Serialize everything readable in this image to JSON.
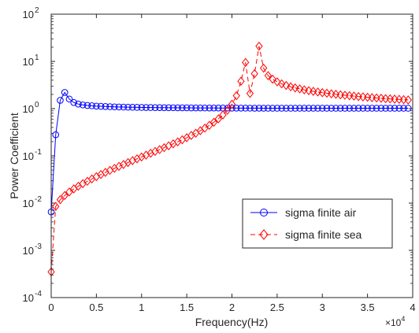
{
  "chart_data": {
    "type": "line",
    "xlabel": "Frequency(Hz)",
    "ylabel": "Power Coefficient",
    "x_multiplier_label": {
      "base": "×10",
      "exponent": "4"
    },
    "xlim": [
      0,
      40000
    ],
    "ylim": [
      0.0001,
      100
    ],
    "yscale": "log",
    "grid": false,
    "legend_position": "lower-right",
    "x_ticks": [
      {
        "value": 0,
        "label": "0"
      },
      {
        "value": 5000,
        "label": "0.5"
      },
      {
        "value": 10000,
        "label": "1"
      },
      {
        "value": 15000,
        "label": "1.5"
      },
      {
        "value": 20000,
        "label": "2"
      },
      {
        "value": 25000,
        "label": "2.5"
      },
      {
        "value": 30000,
        "label": "3"
      },
      {
        "value": 35000,
        "label": "3.5"
      },
      {
        "value": 40000,
        "label": "4"
      }
    ],
    "y_ticks": [
      {
        "value": 0.0001,
        "base": "10",
        "exponent": "-4"
      },
      {
        "value": 0.001,
        "base": "10",
        "exponent": "-3"
      },
      {
        "value": 0.01,
        "base": "10",
        "exponent": "-2"
      },
      {
        "value": 0.1,
        "base": "10",
        "exponent": "-1"
      },
      {
        "value": 1,
        "base": "10",
        "exponent": "0"
      },
      {
        "value": 10,
        "base": "10",
        "exponent": "1"
      },
      {
        "value": 100,
        "base": "10",
        "exponent": "2"
      }
    ],
    "series": [
      {
        "name": "sigma finite air",
        "color": "#0000ff",
        "line_style": "solid",
        "marker": "circle",
        "x": [
          0,
          500,
          1000,
          1500,
          2000,
          2500,
          3000,
          3500,
          4000,
          4500,
          5000,
          5500,
          6000,
          6500,
          7000,
          7500,
          8000,
          8500,
          9000,
          9500,
          10000,
          10500,
          11000,
          11500,
          12000,
          12500,
          13000,
          13500,
          14000,
          14500,
          15000,
          15500,
          16000,
          16500,
          17000,
          17500,
          18000,
          18500,
          19000,
          19500,
          20000,
          20500,
          21000,
          21500,
          22000,
          22500,
          23000,
          23500,
          24000,
          24500,
          25000,
          25500,
          26000,
          26500,
          27000,
          27500,
          28000,
          28500,
          29000,
          29500,
          30000,
          30500,
          31000,
          31500,
          32000,
          32500,
          33000,
          33500,
          34000,
          34500,
          35000,
          35500,
          36000,
          36500,
          37000,
          37500,
          38000,
          38500,
          39000,
          39500
        ],
        "y": [
          0.0065,
          0.28,
          1.5,
          2.2,
          1.6,
          1.35,
          1.25,
          1.2,
          1.17,
          1.15,
          1.13,
          1.12,
          1.11,
          1.1,
          1.09,
          1.085,
          1.08,
          1.075,
          1.07,
          1.065,
          1.06,
          1.058,
          1.055,
          1.052,
          1.05,
          1.048,
          1.046,
          1.044,
          1.042,
          1.04,
          1.04,
          1.038,
          1.036,
          1.035,
          1.034,
          1.033,
          1.032,
          1.031,
          1.03,
          1.029,
          1.028,
          1.027,
          1.026,
          1.025,
          1.024,
          1.023,
          1.022,
          1.021,
          1.02,
          1.02,
          1.02,
          1.02,
          1.02,
          1.02,
          1.02,
          1.02,
          1.02,
          1.02,
          1.02,
          1.02,
          1.02,
          1.02,
          1.02,
          1.02,
          1.02,
          1.02,
          1.02,
          1.02,
          1.02,
          1.02,
          1.02,
          1.02,
          1.02,
          1.02,
          1.02,
          1.02,
          1.02,
          1.02,
          1.02,
          1.02
        ]
      },
      {
        "name": "sigma finite sea",
        "color": "#ff0000",
        "line_style": "dashed",
        "marker": "diamond",
        "x": [
          0,
          500,
          1000,
          1500,
          2000,
          2500,
          3000,
          3500,
          4000,
          4500,
          5000,
          5500,
          6000,
          6500,
          7000,
          7500,
          8000,
          8500,
          9000,
          9500,
          10000,
          10500,
          11000,
          11500,
          12000,
          12500,
          13000,
          13500,
          14000,
          14500,
          15000,
          15500,
          16000,
          16500,
          17000,
          17500,
          18000,
          18500,
          19000,
          19500,
          20000,
          20500,
          21000,
          21500,
          22000,
          22500,
          23000,
          23500,
          24000,
          24500,
          25000,
          25500,
          26000,
          26500,
          27000,
          27500,
          28000,
          28500,
          29000,
          29500,
          30000,
          30500,
          31000,
          31500,
          32000,
          32500,
          33000,
          33500,
          34000,
          34500,
          35000,
          35500,
          36000,
          36500,
          37000,
          37500,
          38000,
          38500,
          39000,
          39500
        ],
        "y": [
          0.00035,
          0.0085,
          0.0118,
          0.0145,
          0.0172,
          0.02,
          0.0228,
          0.0258,
          0.029,
          0.0325,
          0.0363,
          0.0403,
          0.0447,
          0.0494,
          0.0544,
          0.0599,
          0.0658,
          0.0722,
          0.0791,
          0.0866,
          0.0948,
          0.1037,
          0.1134,
          0.1241,
          0.1359,
          0.1489,
          0.1634,
          0.1797,
          0.198,
          0.2188,
          0.2427,
          0.2702,
          0.3024,
          0.3406,
          0.3867,
          0.4434,
          0.515,
          0.6086,
          0.737,
          0.926,
          1.24,
          1.88,
          3.8,
          9.5,
          2.1,
          5.5,
          21.0,
          7.2,
          5.0,
          4.2,
          3.7,
          3.35,
          3.1,
          2.9,
          2.75,
          2.62,
          2.5,
          2.4,
          2.32,
          2.25,
          2.18,
          2.12,
          2.06,
          2.01,
          1.96,
          1.92,
          1.88,
          1.84,
          1.8,
          1.77,
          1.74,
          1.71,
          1.68,
          1.66,
          1.63,
          1.61,
          1.59,
          1.57,
          1.55,
          1.53
        ]
      }
    ]
  }
}
